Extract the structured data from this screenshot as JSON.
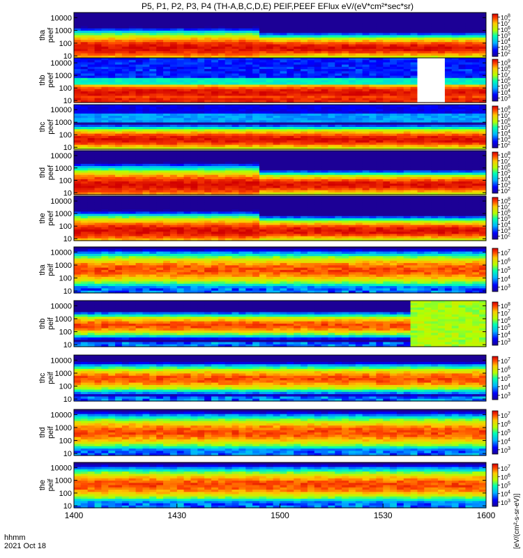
{
  "chart_data": {
    "type": "heatmap",
    "title": "P5, P1, P2, P3, P4 (TH-A,B,C,D,E) PEIF,PEEF EFlux eV/(eV*cm²*sec*sr)",
    "x": {
      "ticks": [
        1400,
        1430,
        1500,
        1530,
        1600
      ],
      "tick_labels": [
        "1400",
        "1430",
        "1500",
        "1530",
        "1600"
      ],
      "label_line1": "hhmm",
      "label_line2": "2021 Oct 18",
      "range": [
        "14:00",
        "16:00"
      ]
    },
    "y": {
      "scale": "log",
      "range_eV": [
        7,
        25000
      ],
      "tick_values": [
        10,
        100,
        1000,
        10000
      ],
      "tick_labels": [
        "10",
        "100",
        "1000",
        "10000"
      ]
    },
    "colorbar_label": "[eV/(cm²-s-sr-eV)]",
    "panels": [
      {
        "id": "tha_peef",
        "label": [
          "tha",
          "peef"
        ],
        "species": "electron",
        "cbar_exps": [
          "2",
          "3",
          "4",
          "5",
          "6",
          "7",
          "8"
        ]
      },
      {
        "id": "thb_peef",
        "label": [
          "thb",
          "peef"
        ],
        "species": "electron",
        "cbar_exps": [
          "3",
          "4",
          "5",
          "6",
          "7",
          "8",
          "9"
        ],
        "data_gap": [
          "15:40",
          "15:48"
        ]
      },
      {
        "id": "thc_peef",
        "label": [
          "thc",
          "peef"
        ],
        "species": "electron",
        "cbar_exps": [
          "2",
          "3",
          "4",
          "5",
          "6",
          "7",
          "8"
        ]
      },
      {
        "id": "thd_peef",
        "label": [
          "thd",
          "peef"
        ],
        "species": "electron",
        "cbar_exps": [
          "2",
          "3",
          "4",
          "5",
          "6",
          "7",
          "8"
        ]
      },
      {
        "id": "the_peef",
        "label": [
          "the",
          "peef"
        ],
        "species": "electron",
        "cbar_exps": [
          "2",
          "3",
          "4",
          "5",
          "6",
          "7",
          "8"
        ]
      },
      {
        "id": "tha_peif",
        "label": [
          "tha",
          "peif"
        ],
        "species": "ion",
        "cbar_exps": [
          "3",
          "4",
          "5",
          "6",
          "7"
        ]
      },
      {
        "id": "thb_peif",
        "label": [
          "thb",
          "peif"
        ],
        "species": "ion",
        "cbar_exps": [
          "3",
          "4",
          "5",
          "6",
          "7",
          "8"
        ]
      },
      {
        "id": "thc_peif",
        "label": [
          "thc",
          "peif"
        ],
        "species": "ion",
        "cbar_exps": [
          "3",
          "4",
          "5",
          "6",
          "7"
        ]
      },
      {
        "id": "thd_peif",
        "label": [
          "thd",
          "peif"
        ],
        "species": "ion",
        "cbar_exps": [
          "3",
          "4",
          "5",
          "6",
          "7"
        ]
      },
      {
        "id": "the_peif",
        "label": [
          "the",
          "peif"
        ],
        "species": "ion",
        "cbar_exps": [
          "3",
          "4",
          "5",
          "6",
          "7"
        ]
      }
    ]
  }
}
